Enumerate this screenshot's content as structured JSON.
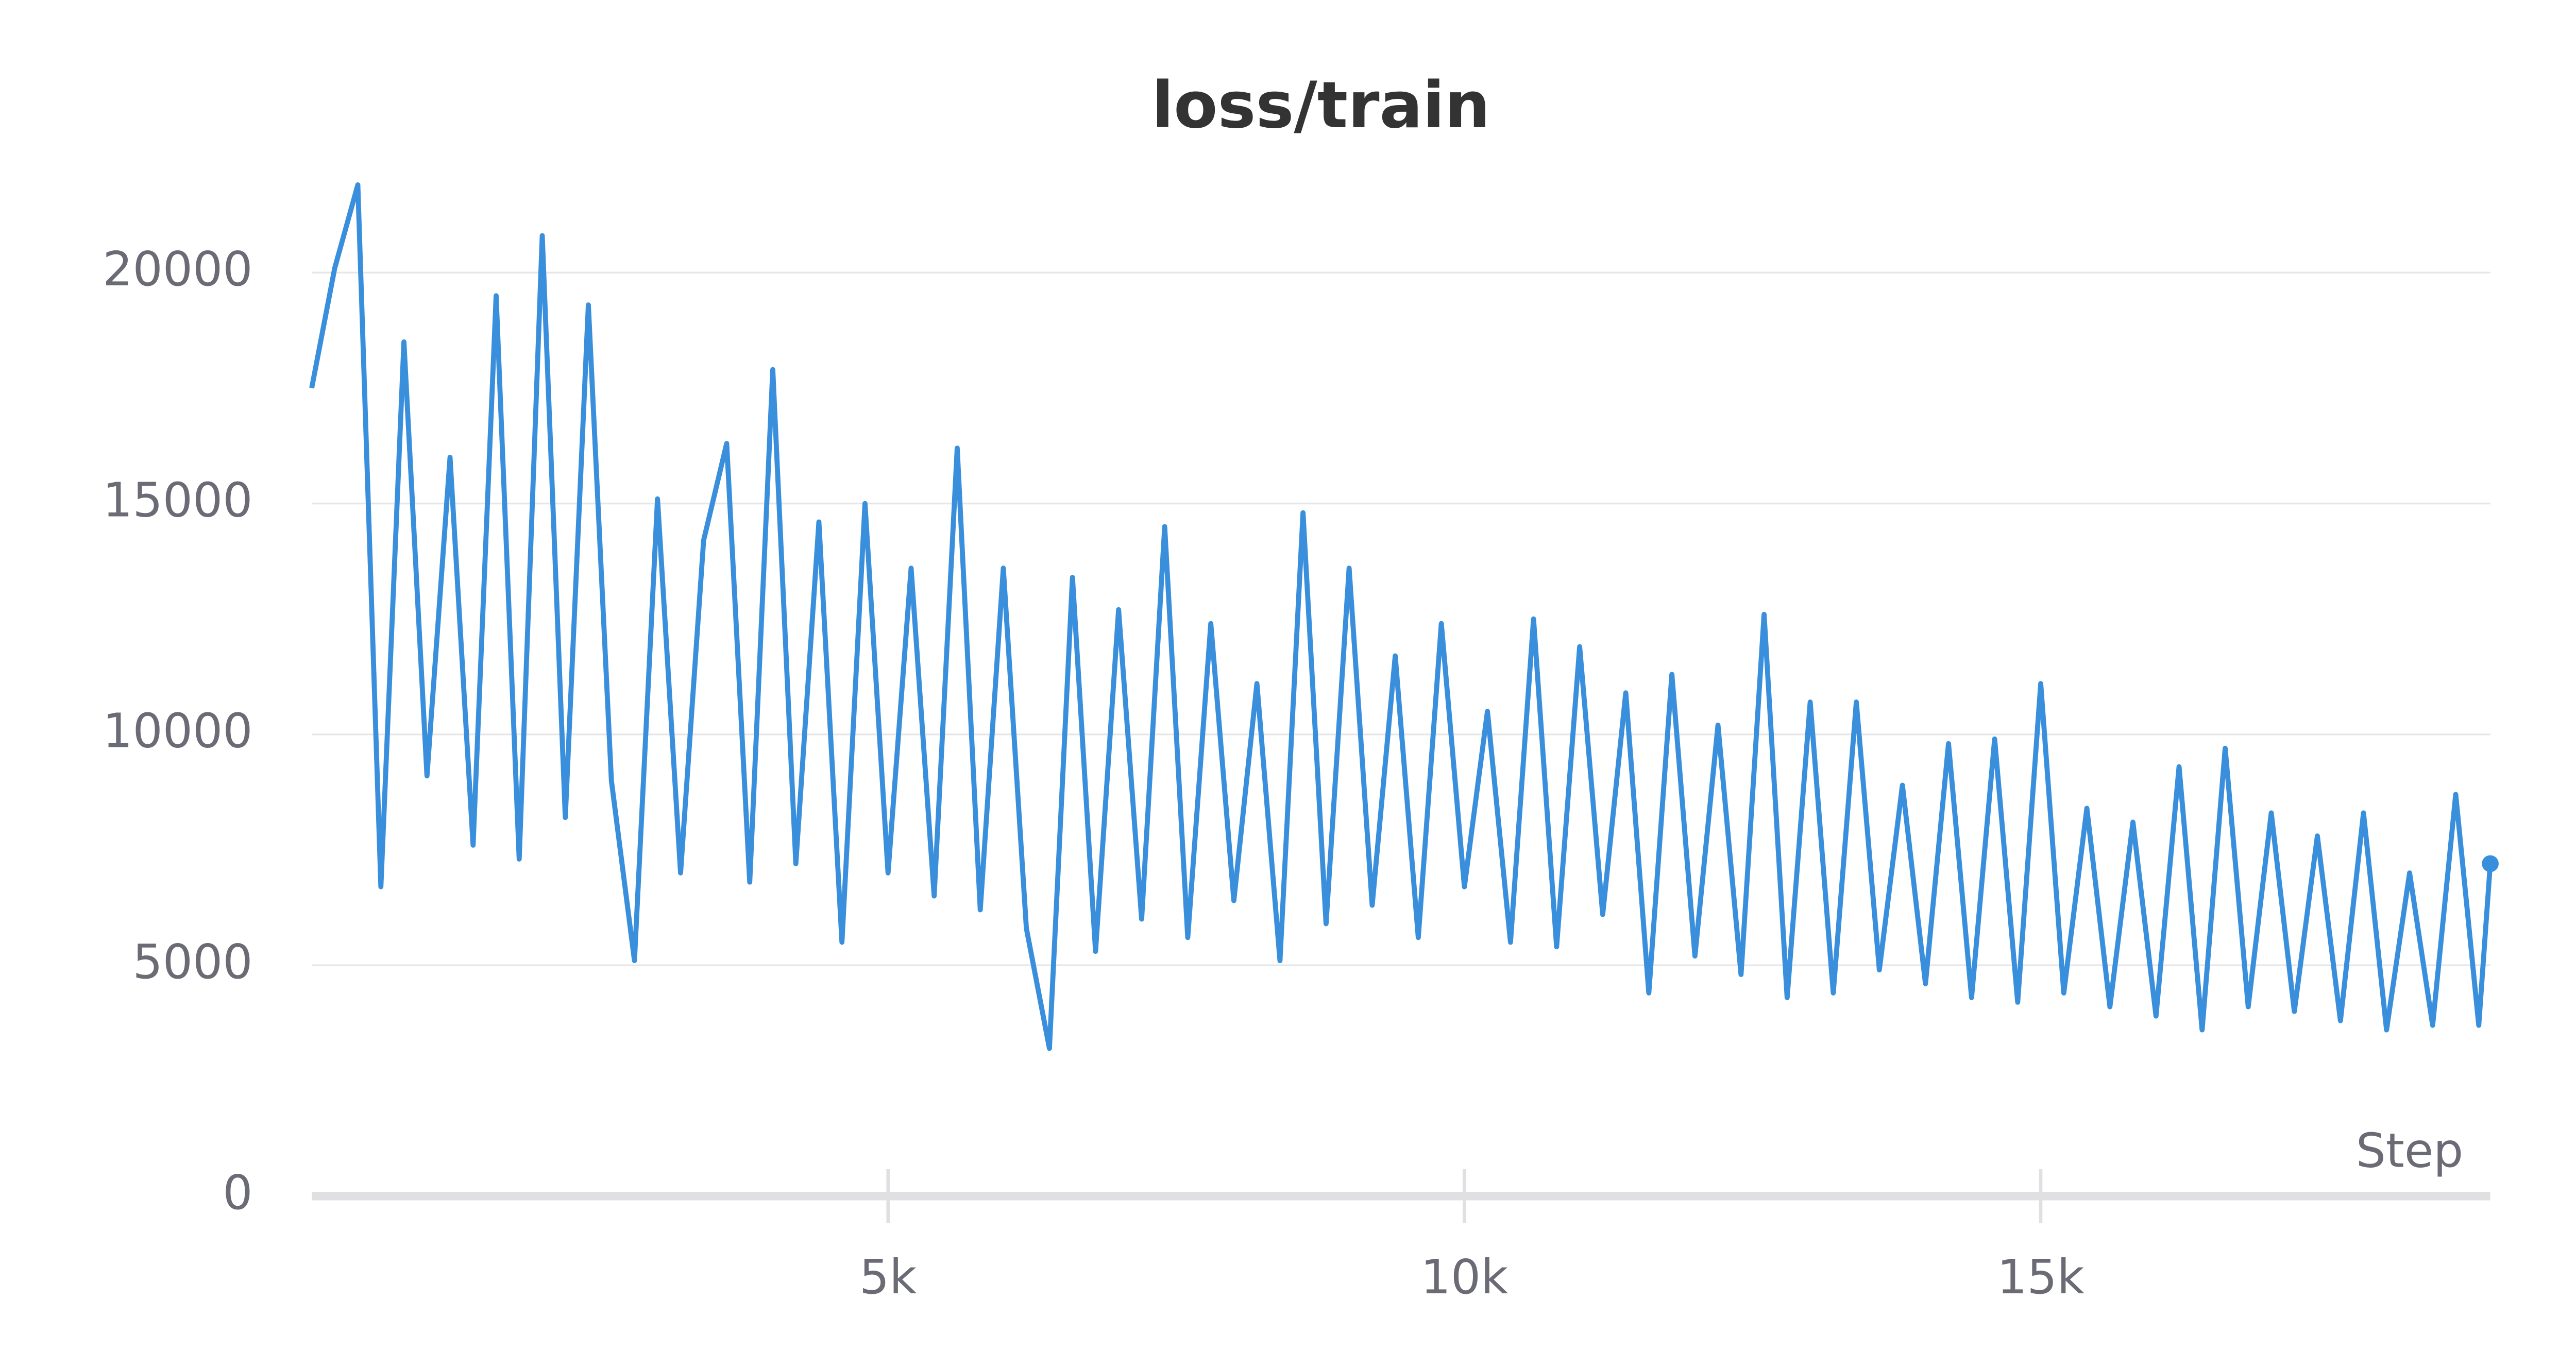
{
  "chart_data": {
    "type": "line",
    "title": "loss/train",
    "x_label": "Step",
    "x": [
      0,
      200,
      400,
      600,
      800,
      1000,
      1200,
      1400,
      1600,
      1800,
      2000,
      2200,
      2400,
      2600,
      2800,
      3000,
      3200,
      3400,
      3600,
      3800,
      4000,
      4200,
      4400,
      4600,
      4800,
      5000,
      5200,
      5400,
      5600,
      5800,
      6000,
      6200,
      6400,
      6600,
      6800,
      7000,
      7200,
      7400,
      7600,
      7800,
      8000,
      8200,
      8400,
      8600,
      8800,
      9000,
      9200,
      9400,
      9600,
      9800,
      10000,
      10200,
      10400,
      10600,
      10800,
      11000,
      11200,
      11400,
      11600,
      11800,
      12000,
      12200,
      12400,
      12600,
      12800,
      13000,
      13200,
      13400,
      13600,
      13800,
      14000,
      14200,
      14400,
      14600,
      14800,
      15000,
      15200,
      15400,
      15600,
      15800,
      16000,
      16200,
      16400,
      16600,
      16800,
      17000,
      17200,
      17400,
      17600,
      17800,
      18000,
      18200,
      18400,
      18600,
      18800,
      18900
    ],
    "series": [
      {
        "name": "loss/train",
        "color": "#3a8fdc",
        "values": [
          17500,
          20100,
          21900,
          6700,
          18500,
          9100,
          16000,
          7600,
          19500,
          7300,
          20800,
          8200,
          19300,
          9000,
          5100,
          15100,
          7000,
          14200,
          16300,
          6800,
          17900,
          7200,
          14600,
          5500,
          15000,
          7000,
          13600,
          6500,
          16200,
          6200,
          13600,
          5800,
          3200,
          13400,
          5300,
          12700,
          6000,
          14500,
          5600,
          12400,
          6400,
          11100,
          5100,
          14800,
          5900,
          13600,
          6300,
          11700,
          5600,
          12400,
          6700,
          10500,
          5500,
          12500,
          5400,
          11900,
          6100,
          10900,
          4400,
          11300,
          5200,
          10200,
          4800,
          12600,
          4300,
          10700,
          4400,
          10700,
          4900,
          8900,
          4600,
          9800,
          4300,
          9900,
          4200,
          11100,
          4400,
          8400,
          4100,
          8100,
          3900,
          9300,
          3600,
          9700,
          4100,
          8300,
          4000,
          7800,
          3800,
          8300,
          3600,
          7000,
          3700,
          8700,
          3700,
          7200
        ]
      }
    ],
    "xlim": [
      0,
      18900
    ],
    "ylim": [
      0,
      22000
    ],
    "xticks": [
      {
        "value": 5000,
        "label": "5k"
      },
      {
        "value": 10000,
        "label": "10k"
      },
      {
        "value": 15000,
        "label": "15k"
      }
    ],
    "yticks": [
      0,
      5000,
      10000,
      15000,
      20000
    ],
    "grid": true
  }
}
